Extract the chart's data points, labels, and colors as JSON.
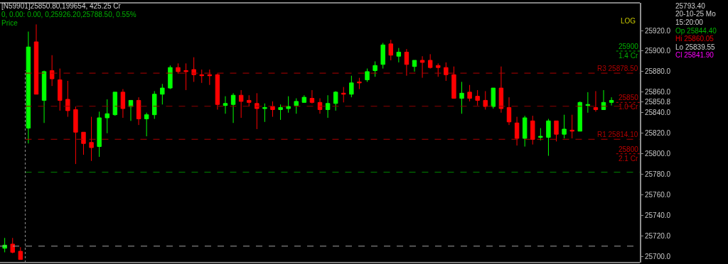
{
  "chart_data": {
    "type": "candlestick",
    "title": "[N59901]25850.80,199654, 425.25 Cr",
    "subtitle": "0, 0.00: 0.00, 0,25926.20,25788.50, 0.55%",
    "ylabel": "Price",
    "categories": [
      null,
      null,
      null,
      null,
      null,
      null,
      null,
      null,
      null,
      null,
      null,
      null,
      null,
      null,
      null,
      null,
      null,
      null,
      null,
      null,
      null,
      null,
      null,
      null,
      null,
      null,
      null,
      null,
      null,
      null,
      null,
      null,
      null,
      null,
      null,
      null,
      null,
      null,
      null,
      null,
      null,
      null,
      null,
      null,
      null,
      null,
      null,
      null,
      null,
      null,
      null,
      null,
      null,
      null,
      null,
      null,
      null,
      null,
      null,
      null,
      null,
      null,
      null,
      null,
      null,
      null,
      null,
      null,
      null,
      null,
      null,
      null,
      null,
      null,
      null,
      null,
      null,
      null
    ],
    "ohlc": [
      [
        25708,
        25718,
        25704,
        25711
      ],
      [
        25712,
        25718,
        25703,
        25704
      ],
      [
        25705,
        25709,
        25697,
        25697
      ],
      [
        25825,
        25919,
        25810,
        25904
      ],
      [
        25909,
        25926,
        25858,
        25858
      ],
      [
        25852,
        25881,
        25830,
        25880
      ],
      [
        25881,
        25896,
        25866,
        25873
      ],
      [
        25872,
        25883,
        25842,
        25852
      ],
      [
        25853,
        25871,
        25836,
        25842
      ],
      [
        25843,
        25846,
        25790,
        25821
      ],
      [
        25821,
        25821,
        25799,
        25810
      ],
      [
        25811,
        25836,
        25793,
        25806
      ],
      [
        25807,
        25841,
        25797,
        25835
      ],
      [
        25835,
        25853,
        25820,
        25839
      ],
      [
        25838,
        25860,
        25837,
        25860
      ],
      [
        25860,
        25863,
        25835,
        25844
      ],
      [
        25846,
        25852,
        25832,
        25852
      ],
      [
        25852,
        25855,
        25828,
        25834
      ],
      [
        25834,
        25840,
        25817,
        25838
      ],
      [
        25838,
        25861,
        25834,
        25858
      ],
      [
        25858,
        25868,
        25848,
        25864
      ],
      [
        25864,
        25886,
        25863,
        25884
      ],
      [
        25884,
        25888,
        25878,
        25880
      ],
      [
        25881,
        25888,
        25862,
        25880
      ],
      [
        25882,
        25894,
        25870,
        25877
      ],
      [
        25877,
        25882,
        25869,
        25876
      ],
      [
        25877,
        25882,
        25867,
        25876
      ],
      [
        25877,
        25878,
        25843,
        25848
      ],
      [
        25847,
        25856,
        25839,
        25849
      ],
      [
        25848,
        25859,
        25830,
        25857
      ],
      [
        25857,
        25862,
        25835,
        25851
      ],
      [
        25852,
        25857,
        25846,
        25850
      ],
      [
        25849,
        25859,
        25824,
        25844
      ],
      [
        25844,
        25849,
        25831,
        25845
      ],
      [
        25846,
        25851,
        25836,
        25843
      ],
      [
        25843,
        25848,
        25833,
        25845
      ],
      [
        25844,
        25856,
        25840,
        25846
      ],
      [
        25847,
        25854,
        25839,
        25851
      ],
      [
        25850,
        25857,
        25850,
        25855
      ],
      [
        25854,
        25862,
        25849,
        25850
      ],
      [
        25850,
        25854,
        25839,
        25843
      ],
      [
        25843,
        25857,
        25835,
        25849
      ],
      [
        25849,
        25861,
        25842,
        25860
      ],
      [
        25859,
        25865,
        25850,
        25858
      ],
      [
        25858,
        25876,
        25855,
        25869
      ],
      [
        25870,
        25874,
        25863,
        25869
      ],
      [
        25872,
        25883,
        25870,
        25880
      ],
      [
        25881,
        25890,
        25875,
        25886
      ],
      [
        25887,
        25908,
        25883,
        25906
      ],
      [
        25907,
        25911,
        25891,
        25896
      ],
      [
        25895,
        25903,
        25889,
        25899
      ],
      [
        25899,
        25902,
        25876,
        25887
      ],
      [
        25885,
        25891,
        25880,
        25891
      ],
      [
        25891,
        25895,
        25874,
        25889
      ],
      [
        25891,
        25897,
        25883,
        25884
      ],
      [
        25886,
        25888,
        25875,
        25884
      ],
      [
        25884,
        25889,
        25871,
        25877
      ],
      [
        25877,
        25885,
        25854,
        25854
      ],
      [
        25854,
        25870,
        25839,
        25859
      ],
      [
        25860,
        25867,
        25851,
        25854
      ],
      [
        25856,
        25862,
        25847,
        25852
      ],
      [
        25852,
        25861,
        25843,
        25846
      ],
      [
        25846,
        25864,
        25844,
        25864
      ],
      [
        25864,
        25885,
        25840,
        25844
      ],
      [
        25845,
        25855,
        25828,
        25831
      ],
      [
        25830,
        25836,
        25808,
        25815
      ],
      [
        25815,
        25837,
        25807,
        25835
      ],
      [
        25832,
        25837,
        25809,
        25814
      ],
      [
        25816,
        25825,
        25813,
        25817
      ],
      [
        25816,
        25834,
        25798,
        25832
      ],
      [
        25832,
        25832,
        25812,
        25819
      ],
      [
        25819,
        25838,
        25815,
        25824
      ],
      [
        25823,
        25838,
        25815,
        25822
      ],
      [
        25822,
        25851,
        25822,
        25850
      ],
      [
        25847,
        25860,
        25840,
        25848
      ],
      [
        25845,
        25861,
        25841,
        25843
      ],
      [
        25843,
        25862,
        25843,
        25850
      ],
      [
        25850,
        25855,
        25847,
        25852
      ]
    ],
    "ylim": [
      25694,
      25947
    ],
    "yticks": [
      {
        "value": 25700,
        "label": "25700.0"
      },
      {
        "value": 25720,
        "label": "25720.0"
      },
      {
        "value": 25740,
        "label": "25740.0"
      },
      {
        "value": 25760,
        "label": "25760.0"
      },
      {
        "value": 25780,
        "label": "25780.0"
      },
      {
        "value": 25800,
        "label": "25800.0"
      },
      {
        "value": 25820,
        "label": "25820.0"
      },
      {
        "value": 25840,
        "label": "25840.0"
      },
      {
        "value": 25850.8,
        "label": "25850.8"
      },
      {
        "value": 25860,
        "label": "25860.0"
      },
      {
        "value": 25880,
        "label": "25880.0"
      },
      {
        "value": 25900,
        "label": "25900.0"
      },
      {
        "value": 25920,
        "label": "25920.0"
      }
    ],
    "grid": false,
    "legend": false,
    "tick_labels": "y",
    "ref_lines": [
      {
        "axis": "y",
        "value": 25878.5,
        "label": "R3 25878.50",
        "color": "#b00000",
        "line_style": "dashed"
      },
      {
        "axis": "y",
        "value": 25846.3,
        "label": null,
        "color": "#8a0000",
        "line_style": "dashed"
      },
      {
        "axis": "y",
        "value": 25814.1,
        "label": "R1 25814.10",
        "color": "#b00000",
        "line_style": "dashed"
      },
      {
        "axis": "y",
        "value": 25782,
        "label": null,
        "color": "#008a00",
        "line_style": "dashed"
      },
      {
        "axis": "y",
        "value": 25710,
        "label": null,
        "color": "#a0a0a0",
        "line_style": "dashed"
      },
      {
        "axis": "y",
        "value": 25900,
        "label": "25900",
        "color": "#00b000",
        "line_style": "dotted"
      },
      {
        "axis": "y",
        "value": 25850,
        "label": "25850",
        "color": "#c00000",
        "line_style": "dotted"
      },
      {
        "axis": "y",
        "value": 25800,
        "label": "25800",
        "color": "#c00000",
        "line_style": "dotted"
      }
    ],
    "annotations": [
      "LOG",
      "25793.40",
      "20-10-25 Mo",
      "15:20:00",
      "Op 25844.40",
      "Hi 25860.05",
      "Lo 25839.55",
      "Cl 25841.90",
      {
        "text": "1.4 Cr",
        "y": 25900
      },
      {
        "text": "1.0 Cr",
        "y": 25850
      },
      {
        "text": "2.1 Cr",
        "y": 25800
      }
    ]
  }
}
